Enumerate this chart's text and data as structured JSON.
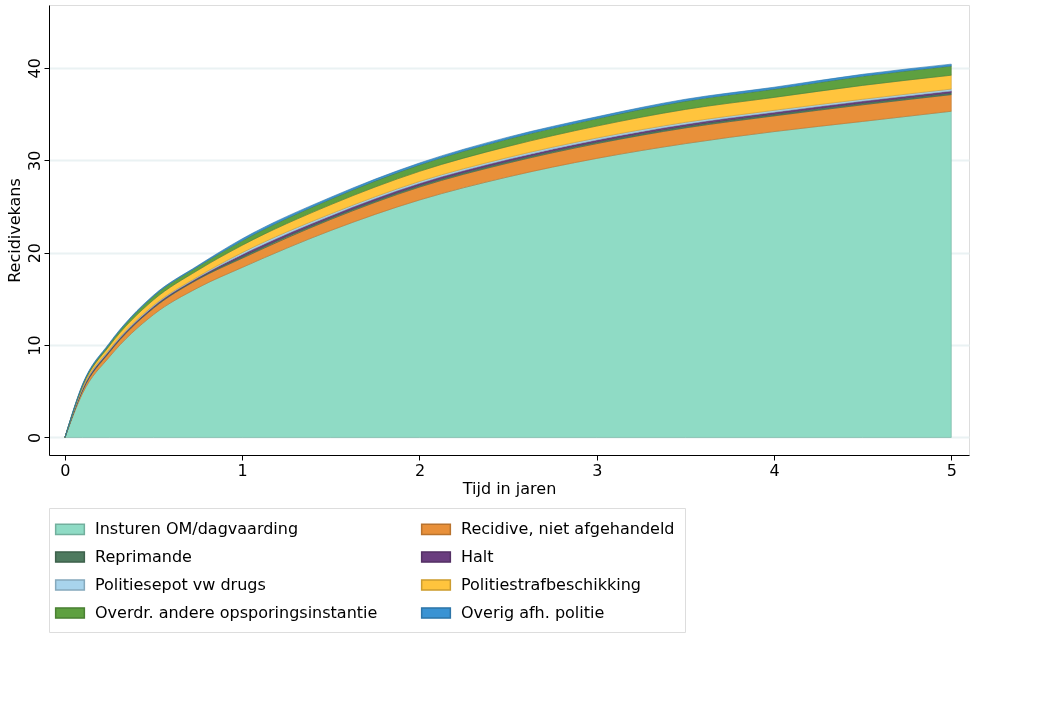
{
  "chart_data": {
    "type": "area",
    "stacked": true,
    "xlabel": "Tijd in jaren",
    "ylabel": "Recidivekans",
    "x": [
      0,
      0.1,
      0.25,
      0.5,
      0.75,
      1,
      1.5,
      2,
      2.5,
      3,
      3.5,
      4,
      4.5,
      5
    ],
    "xlim": [
      -0.09,
      5.1
    ],
    "xticks": [
      0,
      1,
      2,
      3,
      4,
      5
    ],
    "ylim": [
      -1.9,
      46.8
    ],
    "yticks": [
      0,
      10,
      20,
      30,
      40
    ],
    "grid": "y",
    "legend": "bottom",
    "series": [
      {
        "name": "Insturen OM/dagvaarding",
        "color": "#8fdbc5",
        "values": [
          0,
          4.8,
          8.7,
          13.3,
          16.2,
          18.4,
          22.4,
          25.7,
          28.2,
          30.2,
          31.8,
          33.1,
          34.2,
          35.3
        ]
      },
      {
        "name": "Recidive, niet afgehandeld",
        "color": "#e8903a",
        "values": [
          0,
          0.3,
          0.5,
          0.7,
          0.9,
          1.0,
          1.2,
          1.4,
          1.5,
          1.6,
          1.7,
          1.7,
          1.8,
          1.8
        ]
      },
      {
        "name": "Reprimande",
        "color": "#4e7a5f",
        "values": [
          0,
          0.1,
          0.1,
          0.1,
          0.1,
          0.2,
          0.2,
          0.2,
          0.2,
          0.2,
          0.2,
          0.2,
          0.2,
          0.2
        ]
      },
      {
        "name": "Halt",
        "color": "#6a3d7f",
        "values": [
          0,
          0.1,
          0.1,
          0.1,
          0.1,
          0.2,
          0.2,
          0.2,
          0.2,
          0.2,
          0.2,
          0.2,
          0.2,
          0.2
        ]
      },
      {
        "name": "Politiesepot vw drugs",
        "color": "#a8d4ec",
        "values": [
          0,
          0.1,
          0.1,
          0.1,
          0.1,
          0.2,
          0.2,
          0.2,
          0.2,
          0.2,
          0.2,
          0.2,
          0.2,
          0.2
        ]
      },
      {
        "name": "Politiestrafbeschikking",
        "color": "#ffc43d",
        "values": [
          0,
          0.2,
          0.4,
          0.6,
          0.7,
          0.8,
          1.0,
          1.1,
          1.2,
          1.3,
          1.4,
          1.4,
          1.5,
          1.5
        ]
      },
      {
        "name": "Overdr. andere opsporingsinstantie",
        "color": "#5ea040",
        "values": [
          0,
          0.1,
          0.2,
          0.4,
          0.4,
          0.5,
          0.6,
          0.7,
          0.8,
          0.8,
          0.9,
          0.9,
          1.0,
          1.0
        ]
      },
      {
        "name": "Overig afh. politie",
        "color": "#3a93d3",
        "values": [
          0,
          0.1,
          0.1,
          0.1,
          0.1,
          0.2,
          0.2,
          0.2,
          0.2,
          0.2,
          0.2,
          0.2,
          0.2,
          0.2
        ]
      }
    ]
  }
}
